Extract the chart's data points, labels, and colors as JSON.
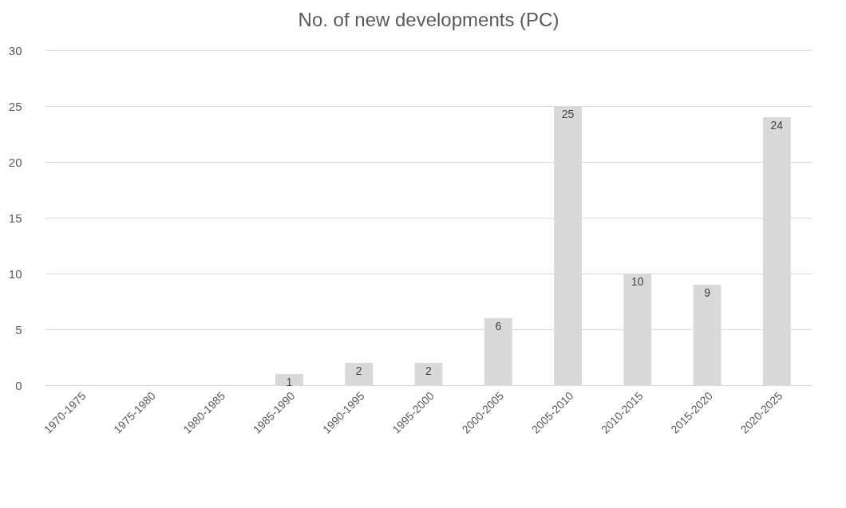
{
  "chart_data": {
    "type": "bar",
    "title": "No. of new developments (PC)",
    "categories": [
      "1970-1975",
      "1975-1980",
      "1980-1985",
      "1985-1990",
      "1990-1995",
      "1995-2000",
      "2000-2005",
      "2005-2010",
      "2010-2015",
      "2015-2020",
      "2020-2025"
    ],
    "values": [
      0,
      0,
      0,
      1,
      2,
      2,
      6,
      25,
      10,
      9,
      24
    ],
    "value_labels": [
      null,
      null,
      null,
      "1",
      "2",
      "2",
      "6",
      "25",
      "10",
      "9",
      "24"
    ],
    "color": "#d9d9d9",
    "ylim": [
      0,
      30
    ],
    "yticks": [
      0,
      5,
      10,
      15,
      20,
      25,
      30
    ],
    "grid": "y"
  }
}
